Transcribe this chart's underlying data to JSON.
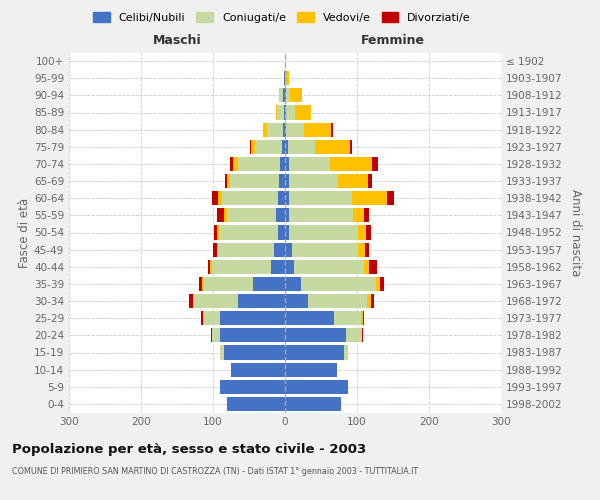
{
  "age_groups": [
    "0-4",
    "5-9",
    "10-14",
    "15-19",
    "20-24",
    "25-29",
    "30-34",
    "35-39",
    "40-44",
    "45-49",
    "50-54",
    "55-59",
    "60-64",
    "65-69",
    "70-74",
    "75-79",
    "80-84",
    "85-89",
    "90-94",
    "95-99",
    "100+"
  ],
  "birth_years": [
    "1998-2002",
    "1993-1997",
    "1988-1992",
    "1983-1987",
    "1978-1982",
    "1973-1977",
    "1968-1972",
    "1963-1967",
    "1958-1962",
    "1953-1957",
    "1948-1952",
    "1943-1947",
    "1938-1942",
    "1933-1937",
    "1928-1932",
    "1923-1927",
    "1918-1922",
    "1913-1917",
    "1908-1912",
    "1903-1907",
    "≤ 1902"
  ],
  "males": {
    "celibi": [
      80,
      90,
      75,
      85,
      90,
      90,
      65,
      45,
      20,
      15,
      10,
      13,
      10,
      8,
      7,
      4,
      3,
      2,
      3,
      1,
      0
    ],
    "coniugati": [
      0,
      0,
      0,
      5,
      12,
      22,
      62,
      68,
      82,
      78,
      82,
      68,
      78,
      68,
      58,
      38,
      22,
      9,
      5,
      1,
      0
    ],
    "vedovi": [
      0,
      0,
      0,
      0,
      0,
      2,
      1,
      2,
      2,
      2,
      3,
      4,
      5,
      5,
      7,
      5,
      5,
      2,
      1,
      0,
      0
    ],
    "divorziati": [
      0,
      0,
      0,
      0,
      1,
      2,
      5,
      5,
      3,
      5,
      3,
      10,
      9,
      3,
      5,
      2,
      0,
      0,
      0,
      0,
      0
    ]
  },
  "females": {
    "nubili": [
      78,
      88,
      72,
      82,
      85,
      68,
      32,
      22,
      12,
      10,
      6,
      6,
      5,
      5,
      5,
      4,
      2,
      2,
      1,
      0,
      0
    ],
    "coniugate": [
      0,
      0,
      0,
      6,
      22,
      38,
      82,
      105,
      98,
      92,
      95,
      88,
      88,
      68,
      58,
      38,
      24,
      12,
      6,
      2,
      0
    ],
    "vedove": [
      0,
      0,
      0,
      0,
      0,
      2,
      5,
      5,
      6,
      9,
      12,
      16,
      48,
      42,
      58,
      48,
      38,
      22,
      16,
      3,
      0
    ],
    "divorziate": [
      0,
      0,
      0,
      0,
      2,
      2,
      5,
      6,
      12,
      5,
      6,
      6,
      10,
      6,
      8,
      3,
      2,
      0,
      0,
      0,
      0
    ]
  },
  "colors": {
    "celibi": "#4472c4",
    "coniugati": "#c5d9a0",
    "vedovi": "#ffc000",
    "divorziati": "#c00000"
  },
  "title": "Popolazione per età, sesso e stato civile - 2003",
  "subtitle": "COMUNE DI PRIMIERO SAN MARTINO DI CASTROZZA (TN) - Dati ISTAT 1° gennaio 2003 - TUTTITALIA.IT",
  "ylabel_left": "Fasce di età",
  "ylabel_right": "Anni di nascita",
  "xlabel_left": "Maschi",
  "xlabel_right": "Femmine",
  "xlim": 300,
  "legend_labels": [
    "Celibi/Nubili",
    "Coniugati/e",
    "Vedovi/e",
    "Divorziati/e"
  ],
  "bg_color": "#f0f0f0",
  "plot_bg_color": "#ffffff"
}
